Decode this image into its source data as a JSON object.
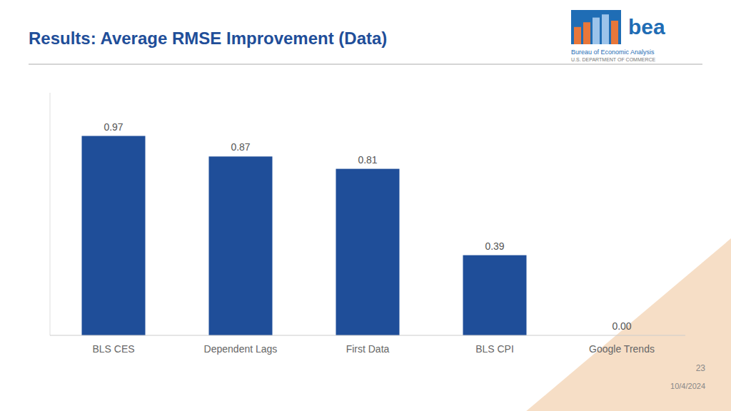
{
  "chart_data": {
    "type": "bar",
    "title": "Results: Average RMSE Improvement (Data)",
    "categories": [
      "BLS CES",
      "Dependent Lags",
      "First Data",
      "BLS CPI",
      "Google Trends"
    ],
    "values": [
      0.97,
      0.87,
      0.81,
      0.39,
      0.0
    ],
    "value_labels": [
      "0.97",
      "0.87",
      "0.81",
      "0.39",
      "0.00"
    ],
    "color": "#1F4E99",
    "ylim": [
      0,
      1.18
    ],
    "yticks": [],
    "grid": false,
    "data_labels": true,
    "tick_labels": "x",
    "annotations": [
      "23",
      "10/4/2024",
      "bea",
      "Bureau of Economic Analysis",
      "U.S. DEPARTMENT OF COMMERCE"
    ]
  }
}
